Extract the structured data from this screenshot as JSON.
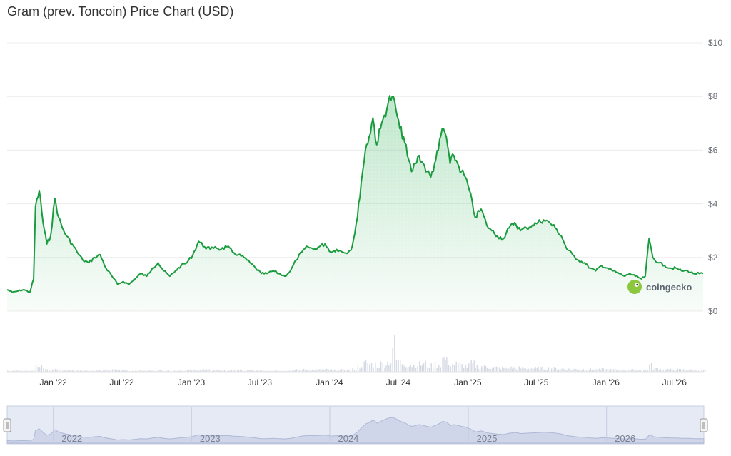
{
  "title": "Gram (prev. Toncoin) Price Chart (USD)",
  "brand": {
    "label": "coingecko",
    "icon": "gecko-logo-icon",
    "color": "#8dc63f"
  },
  "colors": {
    "line": "#1a9c3e",
    "fill_top": "#1aa845",
    "volume": "#d4d9e3",
    "navigator": "#cfd6ea",
    "grid": "#ececec"
  },
  "chart_data": {
    "type": "area",
    "title": "Gram (prev. Toncoin) Price Chart (USD)",
    "currency": "USD",
    "x_range": [
      "2021-09-01",
      "2026-09-15"
    ],
    "ylim": [
      0,
      10
    ],
    "y_ticks": [
      0,
      2,
      4,
      6,
      8,
      10
    ],
    "y_tick_labels": [
      "$0",
      "$2",
      "$4",
      "$6",
      "$8",
      "$10"
    ],
    "x_ticks": [
      "2022-01-01",
      "2022-07-01",
      "2023-01-01",
      "2023-07-01",
      "2024-01-01",
      "2024-07-01",
      "2025-01-01",
      "2025-07-01",
      "2026-01-01",
      "2026-07-01"
    ],
    "x_tick_labels": [
      "Jan '22",
      "Jul '22",
      "Jan '23",
      "Jul '23",
      "Jan '24",
      "Jul '24",
      "Jan '25",
      "Jul '25",
      "Jan '26",
      "Jul '26"
    ],
    "grid": true,
    "series": [
      {
        "x": [
          "2021-09-01",
          "2021-09-15",
          "2021-09-30",
          "2021-10-15",
          "2021-10-31",
          "2021-11-10",
          "2021-11-15",
          "2021-11-25",
          "2021-12-05",
          "2021-12-15",
          "2021-12-25",
          "2022-01-05",
          "2022-01-15",
          "2022-01-25",
          "2022-02-05",
          "2022-02-20",
          "2022-03-05",
          "2022-03-20",
          "2022-04-05",
          "2022-04-20",
          "2022-05-05",
          "2022-05-20",
          "2022-06-05",
          "2022-06-20",
          "2022-07-05",
          "2022-07-20",
          "2022-08-05",
          "2022-08-20",
          "2022-09-05",
          "2022-09-20",
          "2022-10-05",
          "2022-10-20",
          "2022-11-05",
          "2022-11-20",
          "2022-12-05",
          "2022-12-20",
          "2023-01-05",
          "2023-01-20",
          "2023-02-05",
          "2023-02-20",
          "2023-03-05",
          "2023-03-20",
          "2023-04-05",
          "2023-04-20",
          "2023-05-05",
          "2023-05-20",
          "2023-06-05",
          "2023-06-20",
          "2023-07-05",
          "2023-07-20",
          "2023-08-05",
          "2023-08-20",
          "2023-09-05",
          "2023-09-20",
          "2023-10-05",
          "2023-10-20",
          "2023-11-05",
          "2023-11-20",
          "2023-12-05",
          "2023-12-20",
          "2024-01-05",
          "2024-01-20",
          "2024-02-05",
          "2024-02-20",
          "2024-03-01",
          "2024-03-15",
          "2024-03-25",
          "2024-04-05",
          "2024-04-15",
          "2024-04-25",
          "2024-05-05",
          "2024-05-15",
          "2024-05-25",
          "2024-06-05",
          "2024-06-15",
          "2024-06-25",
          "2024-07-05",
          "2024-07-15",
          "2024-07-25",
          "2024-08-05",
          "2024-08-15",
          "2024-08-25",
          "2024-09-05",
          "2024-09-15",
          "2024-09-25",
          "2024-10-05",
          "2024-10-15",
          "2024-10-25",
          "2024-11-05",
          "2024-11-15",
          "2024-11-25",
          "2024-12-05",
          "2024-12-15",
          "2024-12-25",
          "2025-01-05",
          "2025-01-20",
          "2025-02-05",
          "2025-02-20",
          "2025-03-05",
          "2025-03-20",
          "2025-04-05",
          "2025-04-20",
          "2025-05-05",
          "2025-05-20",
          "2025-06-05",
          "2025-06-20",
          "2025-07-05",
          "2025-07-20",
          "2025-08-05",
          "2025-08-20",
          "2025-09-05",
          "2025-09-20",
          "2025-10-05",
          "2025-10-20",
          "2025-11-05",
          "2025-11-20",
          "2025-12-05",
          "2025-12-20",
          "2026-01-05",
          "2026-01-20",
          "2026-02-05",
          "2026-02-20",
          "2026-03-05",
          "2026-03-20",
          "2026-04-05",
          "2026-04-15",
          "2026-04-25",
          "2026-05-05",
          "2026-05-20",
          "2026-06-05",
          "2026-06-20",
          "2026-07-05",
          "2026-07-20",
          "2026-08-05",
          "2026-08-20",
          "2026-09-05",
          "2026-09-15"
        ],
        "values": [
          0.8,
          0.7,
          0.75,
          0.8,
          0.7,
          1.2,
          3.9,
          4.5,
          3.3,
          2.5,
          2.8,
          4.2,
          3.5,
          3.1,
          2.8,
          2.5,
          2.2,
          1.9,
          1.8,
          2.0,
          2.1,
          1.6,
          1.3,
          1.0,
          1.1,
          1.0,
          1.2,
          1.4,
          1.3,
          1.6,
          1.8,
          1.5,
          1.3,
          1.5,
          1.7,
          1.8,
          2.1,
          2.6,
          2.4,
          2.3,
          2.4,
          2.3,
          2.4,
          2.2,
          2.1,
          2.0,
          1.8,
          1.6,
          1.4,
          1.4,
          1.5,
          1.4,
          1.3,
          1.5,
          1.9,
          2.2,
          2.4,
          2.3,
          2.4,
          2.5,
          2.2,
          2.3,
          2.2,
          2.2,
          2.4,
          3.5,
          4.8,
          6.0,
          6.5,
          7.2,
          6.2,
          6.8,
          7.3,
          7.8,
          8.0,
          7.5,
          6.8,
          6.5,
          5.8,
          5.2,
          5.5,
          5.8,
          5.5,
          5.2,
          5.0,
          5.5,
          6.0,
          6.8,
          6.5,
          5.5,
          5.8,
          5.5,
          5.2,
          5.0,
          4.5,
          3.5,
          3.8,
          3.2,
          3.0,
          2.8,
          2.7,
          3.1,
          3.3,
          3.0,
          3.1,
          3.2,
          3.3,
          3.4,
          3.3,
          3.1,
          2.8,
          2.3,
          2.1,
          1.9,
          1.8,
          1.6,
          1.5,
          1.7,
          1.6,
          1.5,
          1.4,
          1.3,
          1.4,
          1.3,
          1.2,
          1.3,
          2.7,
          2.0,
          1.8,
          1.7,
          1.6,
          1.6,
          1.5,
          1.5,
          1.4,
          1.4,
          1.4
        ]
      }
    ],
    "volume_note": "relative volume bars",
    "volume": [
      0.05,
      0.04,
      0.05,
      0.06,
      0.05,
      0.1,
      0.2,
      0.18,
      0.12,
      0.08,
      0.07,
      0.1,
      0.08,
      0.07,
      0.06,
      0.05,
      0.05,
      0.05,
      0.04,
      0.05,
      0.05,
      0.06,
      0.07,
      0.06,
      0.05,
      0.04,
      0.04,
      0.05,
      0.04,
      0.05,
      0.06,
      0.05,
      0.04,
      0.05,
      0.05,
      0.06,
      0.07,
      0.08,
      0.07,
      0.06,
      0.06,
      0.05,
      0.05,
      0.05,
      0.05,
      0.04,
      0.05,
      0.05,
      0.05,
      0.05,
      0.05,
      0.05,
      0.05,
      0.06,
      0.07,
      0.08,
      0.08,
      0.07,
      0.08,
      0.08,
      0.07,
      0.07,
      0.07,
      0.08,
      0.1,
      0.2,
      0.3,
      0.35,
      0.28,
      0.3,
      0.25,
      0.3,
      0.35,
      0.4,
      1.0,
      0.45,
      0.35,
      0.3,
      0.3,
      0.25,
      0.3,
      0.28,
      0.3,
      0.25,
      0.22,
      0.28,
      0.3,
      0.5,
      0.4,
      0.3,
      0.3,
      0.28,
      0.25,
      0.22,
      0.3,
      0.2,
      0.2,
      0.18,
      0.16,
      0.15,
      0.14,
      0.15,
      0.15,
      0.14,
      0.13,
      0.13,
      0.14,
      0.14,
      0.13,
      0.12,
      0.11,
      0.1,
      0.1,
      0.1,
      0.09,
      0.09,
      0.08,
      0.09,
      0.08,
      0.08,
      0.07,
      0.07,
      0.07,
      0.07,
      0.07,
      0.07,
      0.25,
      0.12,
      0.1,
      0.09,
      0.08,
      0.08,
      0.08,
      0.07,
      0.07,
      0.07,
      0.07
    ],
    "navigator_ticks": [
      "2022",
      "2023",
      "2024",
      "2025",
      "2026"
    ]
  }
}
